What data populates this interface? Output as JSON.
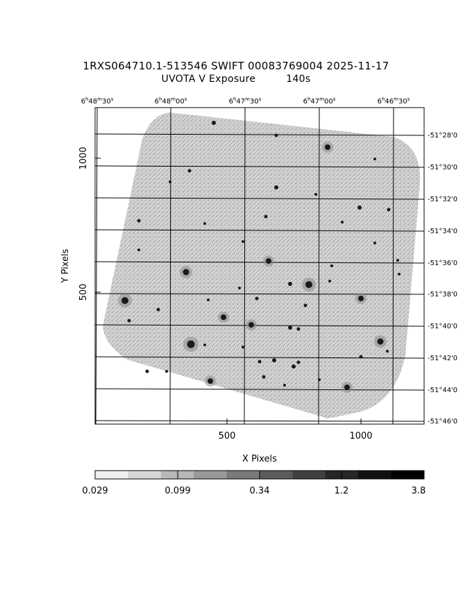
{
  "header": {
    "title_line1": "1RXS064710.1-513546 SWIFT 00083769004 2025-11-17",
    "title_line2_left": "UVOTA V Exposure",
    "title_line2_right": "140s"
  },
  "axes": {
    "xlabel": "X Pixels",
    "ylabel": "Y Pixels",
    "x_ticks": [
      "500",
      "1000"
    ],
    "y_ticks": [
      "500",
      "1000"
    ],
    "ra_ticks": [
      {
        "h": "6",
        "m": "48",
        "s": "30"
      },
      {
        "h": "6",
        "m": "48",
        "s": "00"
      },
      {
        "h": "6",
        "m": "47",
        "s": "30"
      },
      {
        "h": "6",
        "m": "47",
        "s": "00"
      },
      {
        "h": "6",
        "m": "46",
        "s": "30"
      }
    ],
    "dec_ticks": [
      "-51°28'0",
      "-51°30'0",
      "-51°32'0",
      "-51°34'0",
      "-51°36'0",
      "-51°38'0",
      "-51°40'0",
      "-51°42'0",
      "-51°44'0",
      "-51°46'0"
    ]
  },
  "colorbar": {
    "ticks": [
      "0.029",
      "0.099",
      "0.34",
      "1.2",
      "3.8"
    ],
    "colors": [
      "#f0f0f0",
      "#d8d8d8",
      "#b8b8b8",
      "#999999",
      "#7a7a7a",
      "#5c5c5c",
      "#404040",
      "#262626",
      "#101010",
      "#000000"
    ]
  }
}
